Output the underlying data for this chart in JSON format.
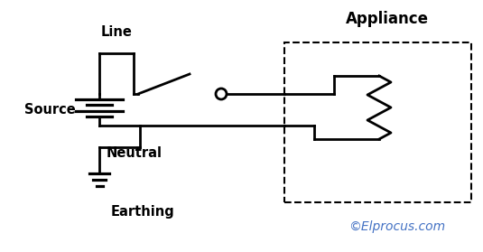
{
  "bg_color": "#ffffff",
  "line_color": "#000000",
  "text_color": "#000000",
  "watermark_color": "#4472c4",
  "labels": {
    "source": "Source",
    "line": "Line",
    "neutral": "Neutral",
    "earthing": "Earthing",
    "appliance": "Appliance",
    "watermark": "©Elprocus.com"
  },
  "label_fontsize": 10.5,
  "appliance_fontsize": 12,
  "watermark_fontsize": 10
}
